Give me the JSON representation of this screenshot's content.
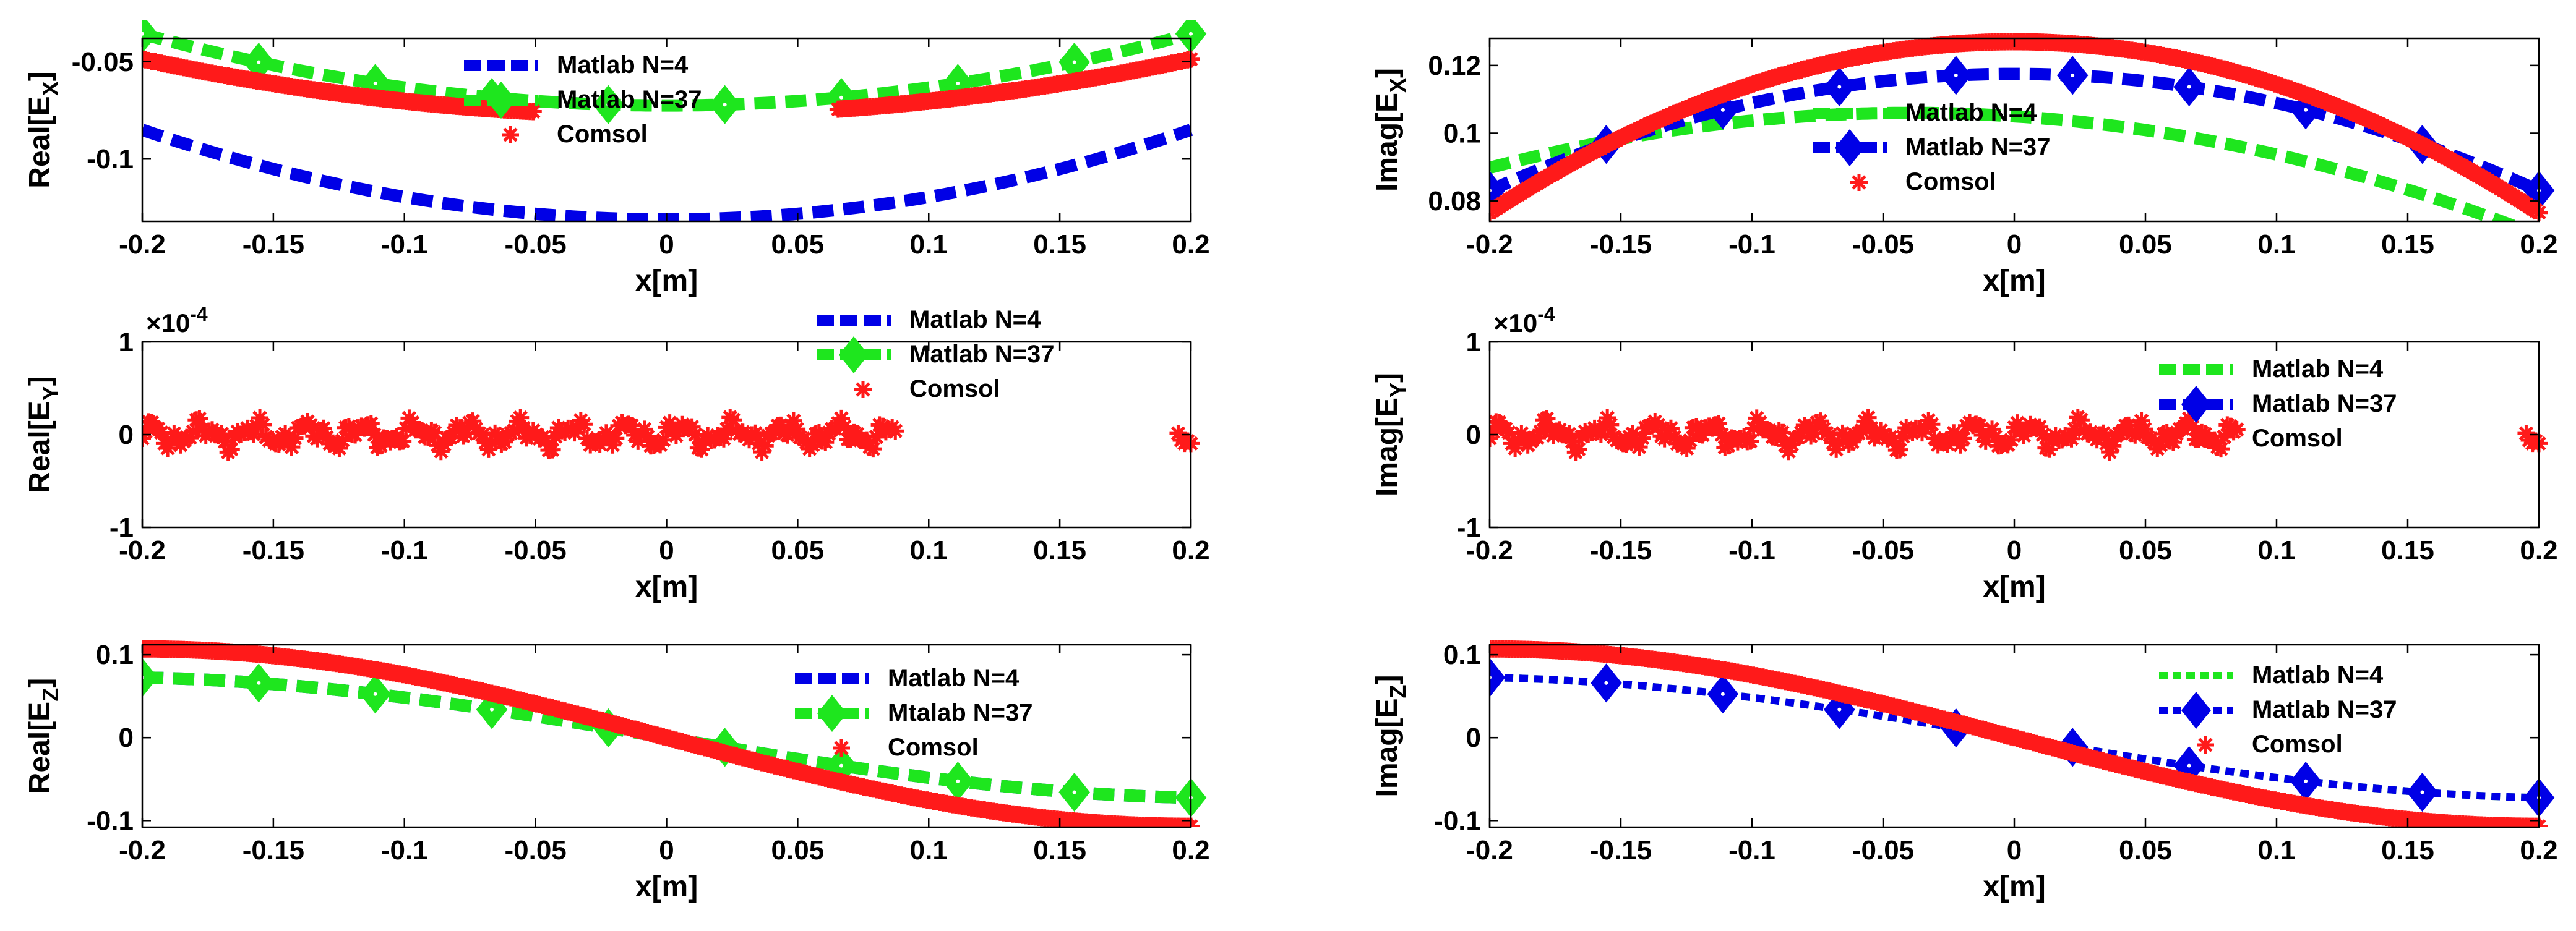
{
  "colors": {
    "blue": "#0000e6",
    "green": "#1ee61e",
    "red": "#ff1a1a",
    "axis": "#000000"
  },
  "chart_data": [
    {
      "type": "line",
      "id": "real-ex",
      "ylabel_main": "Real[E",
      "ylabel_sub": "X",
      "ylabel_tail": "]",
      "xlabel": "x[m]",
      "xlim": [
        -0.2,
        0.2
      ],
      "ylim": [
        -0.132,
        -0.038
      ],
      "xticks": [
        "-0.2",
        "-0.15",
        "-0.1",
        "-0.05",
        "0",
        "0.05",
        "0.1",
        "0.15",
        "0.2"
      ],
      "yticks": [
        {
          "v": -0.05,
          "t": "-0.05"
        },
        {
          "v": -0.1,
          "t": "-0.1"
        }
      ],
      "exponent": "",
      "legend": [
        "Matlab N=4",
        "Matlab N=37",
        "Comsol"
      ],
      "legend_pos": "top-center",
      "series": [
        {
          "name": "Matlab N=4",
          "color": "blue",
          "marker": "none",
          "curve": "rex_n4"
        },
        {
          "name": "Matlab N=37",
          "color": "green",
          "marker": "diamond",
          "curve": "rex_n37"
        },
        {
          "name": "Comsol",
          "color": "red",
          "marker": "star",
          "curve": "rex_comsol",
          "gap": [
            -0.05,
            0.065
          ]
        }
      ]
    },
    {
      "type": "line",
      "id": "imag-ex",
      "ylabel_main": "Imag[E",
      "ylabel_sub": "X",
      "ylabel_tail": "]",
      "xlabel": "x[m]",
      "xlim": [
        -0.2,
        0.2
      ],
      "ylim": [
        0.074,
        0.128
      ],
      "xticks": [
        "-0.2",
        "-0.15",
        "-0.1",
        "-0.05",
        "0",
        "0.05",
        "0.1",
        "0.15",
        "0.2"
      ],
      "yticks": [
        {
          "v": 0.12,
          "t": "0.12"
        },
        {
          "v": 0.1,
          "t": "0.1"
        },
        {
          "v": 0.08,
          "t": "0.08"
        }
      ],
      "exponent": "",
      "legend": [
        "Matlab N=4",
        "Matlab N=37",
        "Comsol"
      ],
      "legend_pos": "top-center",
      "series": [
        {
          "name": "Matlab N=4",
          "color": "green",
          "marker": "none",
          "curve": "iex_n4"
        },
        {
          "name": "Matlab N=37",
          "color": "blue",
          "marker": "diamond",
          "curve": "iex_n37"
        },
        {
          "name": "Comsol",
          "color": "red",
          "marker": "star",
          "curve": "iex_comsol"
        }
      ]
    },
    {
      "type": "line",
      "id": "real-ey",
      "ylabel_main": "Real[E",
      "ylabel_sub": "Y",
      "ylabel_tail": "]",
      "xlabel": "x[m]",
      "xlim": [
        -0.2,
        0.2
      ],
      "ylim": [
        -1,
        1
      ],
      "xticks": [
        "-0.2",
        "-0.15",
        "-0.1",
        "-0.05",
        "0",
        "0.05",
        "0.1",
        "0.15",
        "0.2"
      ],
      "yticks": [
        {
          "v": 1,
          "t": "1"
        },
        {
          "v": 0,
          "t": "0"
        },
        {
          "v": -1,
          "t": "-1"
        }
      ],
      "exponent": "×10",
      "exponent_power": "-4",
      "legend": [
        "Matlab N=4",
        "Matlab N=37",
        "Comsol"
      ],
      "legend_pos": "top-right",
      "series": [
        {
          "name": "Matlab N=4",
          "color": "blue",
          "marker": "none",
          "curve": "zero"
        },
        {
          "name": "Matlab N=37",
          "color": "green",
          "marker": "diamond",
          "curve": "zero"
        },
        {
          "name": "Comsol",
          "color": "red",
          "marker": "star",
          "curve": "noise",
          "gap": [
            0.088,
            0.195
          ]
        }
      ]
    },
    {
      "type": "line",
      "id": "imag-ey",
      "ylabel_main": "Imag[E",
      "ylabel_sub": "Y",
      "ylabel_tail": "]",
      "xlabel": "x[m]",
      "xlim": [
        -0.2,
        0.2
      ],
      "ylim": [
        -1,
        1
      ],
      "xticks": [
        "-0.2",
        "-0.15",
        "-0.1",
        "-0.05",
        "0",
        "0.05",
        "0.1",
        "0.15",
        "0.2"
      ],
      "yticks": [
        {
          "v": 1,
          "t": "1"
        },
        {
          "v": 0,
          "t": "0"
        },
        {
          "v": -1,
          "t": "-1"
        }
      ],
      "exponent": "×10",
      "exponent_power": "-4",
      "legend": [
        "Matlab N=4",
        "Matlab N=37",
        "Comsol"
      ],
      "legend_pos": "top-right",
      "series": [
        {
          "name": "Matlab N=4",
          "color": "green",
          "marker": "none",
          "curve": "zero"
        },
        {
          "name": "Matlab N=37",
          "color": "blue",
          "marker": "diamond",
          "curve": "zero"
        },
        {
          "name": "Comsol",
          "color": "red",
          "marker": "star",
          "curve": "noise",
          "gap": [
            0.085,
            0.195
          ]
        }
      ]
    },
    {
      "type": "line",
      "id": "real-ez",
      "ylabel_main": "Real[E",
      "ylabel_sub": "Z",
      "ylabel_tail": "]",
      "xlabel": "x[m]",
      "xlim": [
        -0.2,
        0.2
      ],
      "ylim": [
        -0.108,
        0.112
      ],
      "xticks": [
        "-0.2",
        "-0.15",
        "-0.1",
        "-0.05",
        "0",
        "0.05",
        "0.1",
        "0.15",
        "0.2"
      ],
      "yticks": [
        {
          "v": 0.1,
          "t": "0.1"
        },
        {
          "v": 0,
          "t": "0"
        },
        {
          "v": -0.1,
          "t": "-0.1"
        }
      ],
      "exponent": "",
      "legend": [
        "Matlab N=4",
        "Mtalab N=37",
        "Comsol"
      ],
      "legend_pos": "top-right",
      "series": [
        {
          "name": "Matlab N=4",
          "color": "blue",
          "marker": "none",
          "curve": "ez_n37"
        },
        {
          "name": "Mtalab N=37",
          "color": "green",
          "marker": "diamond",
          "curve": "ez_n37"
        },
        {
          "name": "Comsol",
          "color": "red",
          "marker": "star",
          "curve": "ez_comsol"
        }
      ]
    },
    {
      "type": "line",
      "id": "imag-ez",
      "ylabel_main": "Imag[E",
      "ylabel_sub": "Z",
      "ylabel_tail": "]",
      "xlabel": "x[m]",
      "xlim": [
        -0.2,
        0.2
      ],
      "ylim": [
        -0.108,
        0.112
      ],
      "xticks": [
        "-0.2",
        "-0.15",
        "-0.1",
        "-0.05",
        "0",
        "0.05",
        "0.1",
        "0.15",
        "0.2"
      ],
      "yticks": [
        {
          "v": 0.1,
          "t": "0.1"
        },
        {
          "v": 0,
          "t": "0"
        },
        {
          "v": -0.1,
          "t": "-0.1"
        }
      ],
      "exponent": "",
      "legend": [
        "Matlab N=4",
        "Matlab N=37",
        "Comsol"
      ],
      "legend_pos": "top-right",
      "series": [
        {
          "name": "Matlab N=4",
          "color": "green",
          "marker": "none",
          "curve": "ez_n37",
          "dotted": true
        },
        {
          "name": "Matlab N=37",
          "color": "blue",
          "marker": "diamond",
          "curve": "ez_n37",
          "dotted": true
        },
        {
          "name": "Comsol",
          "color": "red",
          "marker": "star",
          "curve": "ez_comsol"
        }
      ]
    }
  ]
}
